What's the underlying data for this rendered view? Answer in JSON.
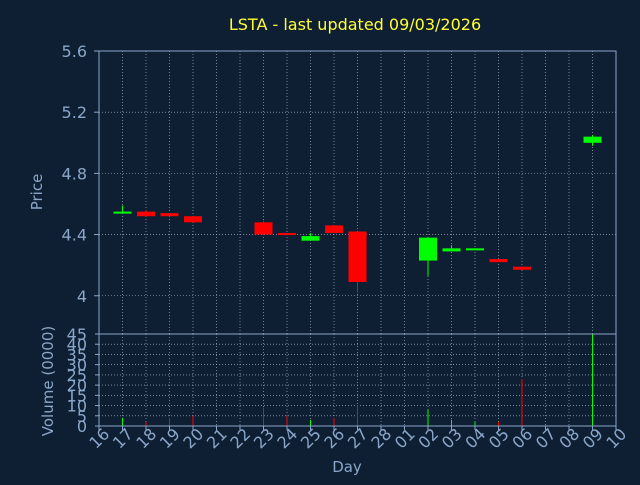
{
  "colors": {
    "background": "#0f1f33",
    "plot_background": "#0f1f33",
    "frame": "#8aa6c9",
    "grid": "#b7c3d3",
    "title": "#ffff33",
    "axis_text": "#8aa6c9",
    "up": "#00ff00",
    "down": "#ff0000"
  },
  "chart_data": [
    {
      "type": "candlestick",
      "title": "LSTA - last updated 09/03/2026",
      "ylabel": "Price",
      "ylim": [
        3.75,
        5.6
      ],
      "y_ticks": [
        "5.6",
        "5.2",
        "4.8",
        "4.4",
        "4"
      ],
      "grid": true,
      "candles": [
        {
          "day": "17",
          "open": 4.54,
          "close": 4.55,
          "high": 4.59,
          "low": 4.54
        },
        {
          "day": "18",
          "open": 4.55,
          "close": 4.52,
          "high": 4.56,
          "low": 4.52
        },
        {
          "day": "19",
          "open": 4.54,
          "close": 4.52,
          "high": 4.54,
          "low": 4.52
        },
        {
          "day": "20",
          "open": 4.52,
          "close": 4.48,
          "high": 4.52,
          "low": 4.48
        },
        {
          "day": "23",
          "open": 4.48,
          "close": 4.4,
          "high": 4.49,
          "low": 4.4
        },
        {
          "day": "24",
          "open": 4.41,
          "close": 4.4,
          "high": 4.41,
          "low": 4.4
        },
        {
          "day": "25",
          "open": 4.36,
          "close": 4.39,
          "high": 4.41,
          "low": 4.36
        },
        {
          "day": "26",
          "open": 4.46,
          "close": 4.41,
          "high": 4.46,
          "low": 4.41
        },
        {
          "day": "27",
          "open": 4.42,
          "close": 4.09,
          "high": 4.42,
          "low": 4.02
        },
        {
          "day": "02",
          "open": 4.23,
          "close": 4.38,
          "high": 4.38,
          "low": 4.13
        },
        {
          "day": "03",
          "open": 4.29,
          "close": 4.31,
          "high": 4.33,
          "low": 4.29
        },
        {
          "day": "04",
          "open": 4.3,
          "close": 4.31,
          "high": 4.31,
          "low": 4.3
        },
        {
          "day": "05",
          "open": 4.24,
          "close": 4.22,
          "high": 4.24,
          "low": 4.22
        },
        {
          "day": "06",
          "open": 4.19,
          "close": 4.17,
          "high": 4.19,
          "low": 4.17
        },
        {
          "day": "09",
          "open": 5.0,
          "close": 5.04,
          "high": 5.05,
          "low": 4.98
        }
      ]
    },
    {
      "type": "bar",
      "ylabel": "Volume (0000)",
      "xlabel": "Day",
      "ylim": [
        0,
        45
      ],
      "y_ticks": [
        "45",
        "40",
        "35",
        "30",
        "25",
        "20",
        "15",
        "10",
        "5",
        "0"
      ],
      "x_ticks": [
        "16",
        "17",
        "18",
        "19",
        "20",
        "21",
        "22",
        "23",
        "24",
        "25",
        "26",
        "27",
        "28",
        "01",
        "02",
        "03",
        "04",
        "05",
        "06",
        "07",
        "08",
        "09",
        "10"
      ],
      "grid": true,
      "bars": [
        {
          "day": "17",
          "value": 4,
          "direction": "up"
        },
        {
          "day": "18",
          "value": 2,
          "direction": "down"
        },
        {
          "day": "19",
          "value": 4,
          "direction": "down"
        },
        {
          "day": "20",
          "value": 5,
          "direction": "down"
        },
        {
          "day": "23",
          "value": 9,
          "direction": "down"
        },
        {
          "day": "24",
          "value": 5,
          "direction": "down"
        },
        {
          "day": "25",
          "value": 3,
          "direction": "up"
        },
        {
          "day": "26",
          "value": 4,
          "direction": "down"
        },
        {
          "day": "27",
          "value": 10,
          "direction": "down"
        },
        {
          "day": "02",
          "value": 8,
          "direction": "up"
        },
        {
          "day": "03",
          "value": 3,
          "direction": "up"
        },
        {
          "day": "04",
          "value": 2,
          "direction": "up"
        },
        {
          "day": "05",
          "value": 2,
          "direction": "down"
        },
        {
          "day": "06",
          "value": 23,
          "direction": "down"
        },
        {
          "day": "09",
          "value": 45,
          "direction": "up"
        }
      ]
    }
  ]
}
